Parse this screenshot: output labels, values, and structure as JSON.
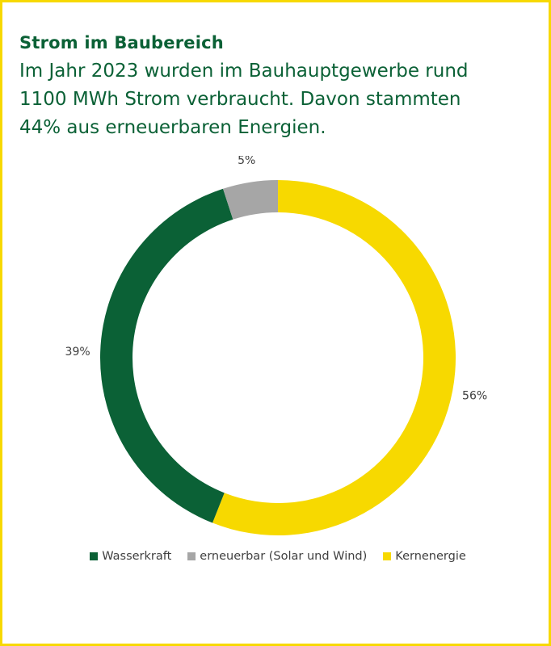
{
  "header": {
    "title": "Strom im Baubereich",
    "subtitle_lines": [
      "Im Jahr 2023 wurden im Bauhauptgewerbe rund",
      "1100 MWh Strom verbraucht. Davon stammten",
      "44% aus erneuerbaren Energien."
    ]
  },
  "colors": {
    "border": "#f7d900",
    "title": "#0b6136"
  },
  "chart_data": {
    "type": "pie",
    "variant": "donut",
    "start": "top",
    "direction": "clockwise",
    "order": [
      "Kernenergie",
      "Wasserkraft",
      "erneuerbar (Solar und Wind)"
    ],
    "series": [
      {
        "name": "Kernenergie",
        "value": 56,
        "label": "56%",
        "color": "#f7d900"
      },
      {
        "name": "Wasserkraft",
        "value": 39,
        "label": "39%",
        "color": "#0b6136"
      },
      {
        "name": "erneuerbar (Solar und Wind)",
        "value": 5,
        "label": "5%",
        "color": "#a6a6a6"
      }
    ],
    "legend": {
      "position": "bottom",
      "items": [
        {
          "label": "Wasserkraft",
          "color": "#0b6136"
        },
        {
          "label": "erneuerbar (Solar und Wind)",
          "color": "#a6a6a6"
        },
        {
          "label": "Kernenergie",
          "color": "#f7d900"
        }
      ]
    }
  }
}
